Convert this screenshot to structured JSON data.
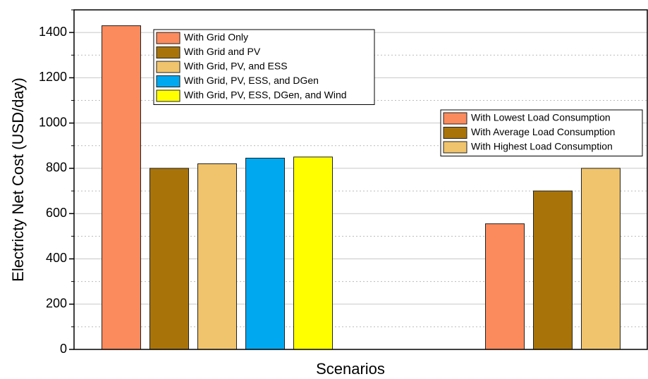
{
  "chart_data": {
    "type": "bar",
    "x_label": "Scenarios",
    "y_label": "Electricty Net Cost (USD/day)",
    "categories": [
      null,
      null,
      null,
      null,
      null,
      null,
      null,
      null,
      null,
      null,
      null
    ],
    "series": [
      {
        "name": "With Grid Only",
        "color": "#fb8a5c",
        "legend": "upper left",
        "values": [
          1430,
          null,
          null,
          null,
          null,
          null,
          null,
          null,
          null,
          null,
          null
        ]
      },
      {
        "name": "With Grid and PV",
        "color": "#a8740a",
        "legend": "upper left",
        "values": [
          null,
          800,
          null,
          null,
          null,
          null,
          null,
          null,
          null,
          null,
          null
        ]
      },
      {
        "name": "With Grid, PV, and ESS",
        "color": "#f0c46c",
        "legend": "upper left",
        "values": [
          null,
          null,
          820,
          null,
          null,
          null,
          null,
          null,
          null,
          null,
          null
        ]
      },
      {
        "name": "With Grid, PV, ESS, and DGen",
        "color": "#00a8f0",
        "legend": "upper left",
        "values": [
          null,
          null,
          null,
          845,
          null,
          null,
          null,
          null,
          null,
          null,
          null
        ]
      },
      {
        "name": "With Grid, PV, ESS, DGen, and Wind",
        "color": "#ffff00",
        "legend": "upper left",
        "values": [
          null,
          null,
          null,
          null,
          850,
          null,
          null,
          null,
          null,
          null,
          null
        ]
      },
      {
        "name": "With Lowest Load Consumption",
        "color": "#fb8a5c",
        "legend": "upper right",
        "values": [
          null,
          null,
          null,
          null,
          null,
          null,
          null,
          null,
          555,
          null,
          null
        ]
      },
      {
        "name": "With Average Load Consumption",
        "color": "#a8740a",
        "legend": "upper right",
        "values": [
          null,
          null,
          null,
          null,
          null,
          null,
          null,
          null,
          null,
          700,
          null
        ]
      },
      {
        "name": "With Highest Load Consumption",
        "color": "#f0c46c",
        "legend": "upper right",
        "values": [
          null,
          null,
          null,
          null,
          null,
          null,
          null,
          null,
          null,
          null,
          800
        ]
      }
    ],
    "ylim": [
      0,
      1500
    ],
    "yticks": [
      0,
      200,
      400,
      600,
      800,
      1000,
      1200,
      1400
    ],
    "yminorticks": [
      100,
      300,
      500,
      700,
      900,
      1100,
      1300,
      1500
    ],
    "grid": true
  }
}
